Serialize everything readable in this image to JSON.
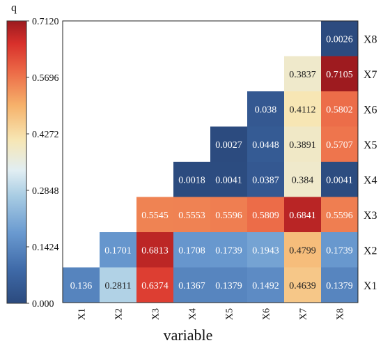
{
  "chart_data": {
    "type": "heatmap",
    "xlabel": "variable",
    "colorbar_title": "q",
    "colorbar_ticks": [
      "0.000",
      "0.1424",
      "0.2848",
      "0.4272",
      "0.5696",
      "0.7120"
    ],
    "colorbar_range": [
      0,
      0.712
    ],
    "columns": [
      "X1",
      "X2",
      "X3",
      "X4",
      "X5",
      "X6",
      "X7",
      "X8"
    ],
    "rows": [
      "X8",
      "X7",
      "X6",
      "X5",
      "X4",
      "X3",
      "X2",
      "X1"
    ],
    "cells": [
      [
        null,
        null,
        null,
        null,
        null,
        null,
        null,
        "0.0026"
      ],
      [
        null,
        null,
        null,
        null,
        null,
        null,
        "0.3837",
        "0.7105"
      ],
      [
        null,
        null,
        null,
        null,
        null,
        "0.038",
        "0.4112",
        "0.5802"
      ],
      [
        null,
        null,
        null,
        null,
        "0.0027",
        "0.0448",
        "0.3891",
        "0.5707"
      ],
      [
        null,
        null,
        null,
        "0.0018",
        "0.0041",
        "0.0387",
        "0.384",
        "0.0041"
      ],
      [
        null,
        null,
        "0.5545",
        "0.5553",
        "0.5596",
        "0.5809",
        "0.6841",
        "0.5596"
      ],
      [
        null,
        "0.1701",
        "0.6813",
        "0.1708",
        "0.1739",
        "0.1943",
        "0.4799",
        "0.1739"
      ],
      [
        "0.136",
        "0.2811",
        "0.6374",
        "0.1367",
        "0.1379",
        "0.1492",
        "0.4639",
        "0.1379"
      ]
    ],
    "colors": {
      "scale": [
        "#2b4a7e",
        "#3f6aa8",
        "#6a9ad0",
        "#a8cce3",
        "#e1eef3",
        "#f7e6b3",
        "#f6b26b",
        "#ec6a47",
        "#d8302b",
        "#9c1a1f"
      ]
    }
  }
}
